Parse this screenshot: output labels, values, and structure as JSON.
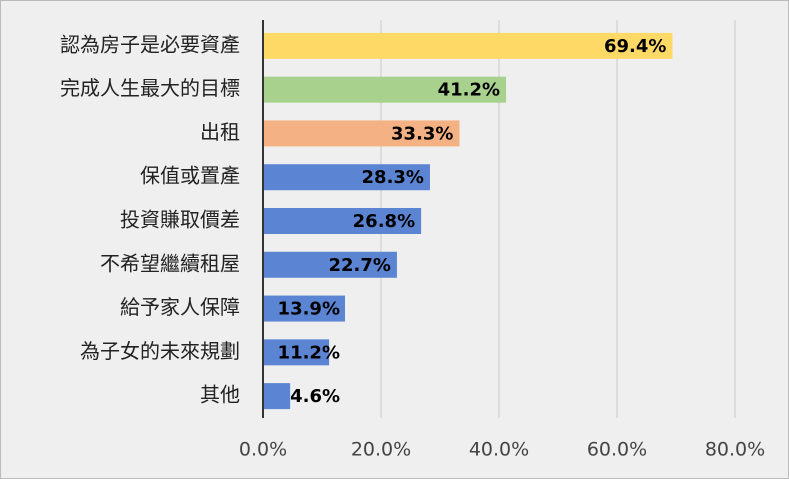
{
  "chart_data": {
    "type": "hbar",
    "categories": [
      "認為房子是必要資產",
      "完成人生最大的目標",
      "出租",
      "保值或置產",
      "投資賺取價差",
      "不希望繼續租屋",
      "給予家人保障",
      "為子女的未來規劃",
      "其他"
    ],
    "values": [
      69.4,
      41.2,
      33.3,
      28.3,
      26.8,
      22.7,
      13.9,
      11.2,
      4.6
    ],
    "value_labels": [
      "69.4%",
      "41.2%",
      "33.3%",
      "28.3%",
      "26.8%",
      "22.7%",
      "13.9%",
      "11.2%",
      "4.6%"
    ],
    "colors": [
      "#FFD966",
      "#A9D18E",
      "#F4B183",
      "#5B84D3",
      "#5B84D3",
      "#5B84D3",
      "#5B84D3",
      "#5B84D3",
      "#5B84D3"
    ],
    "xlim": [
      0,
      80
    ],
    "xticks": [
      {
        "value": 0,
        "label": "0.0%"
      },
      {
        "value": 20,
        "label": "20.0%"
      },
      {
        "value": 40,
        "label": "40.0%"
      },
      {
        "value": 60,
        "label": "60.0%"
      },
      {
        "value": 80,
        "label": "80.0%"
      }
    ],
    "grid": true
  }
}
